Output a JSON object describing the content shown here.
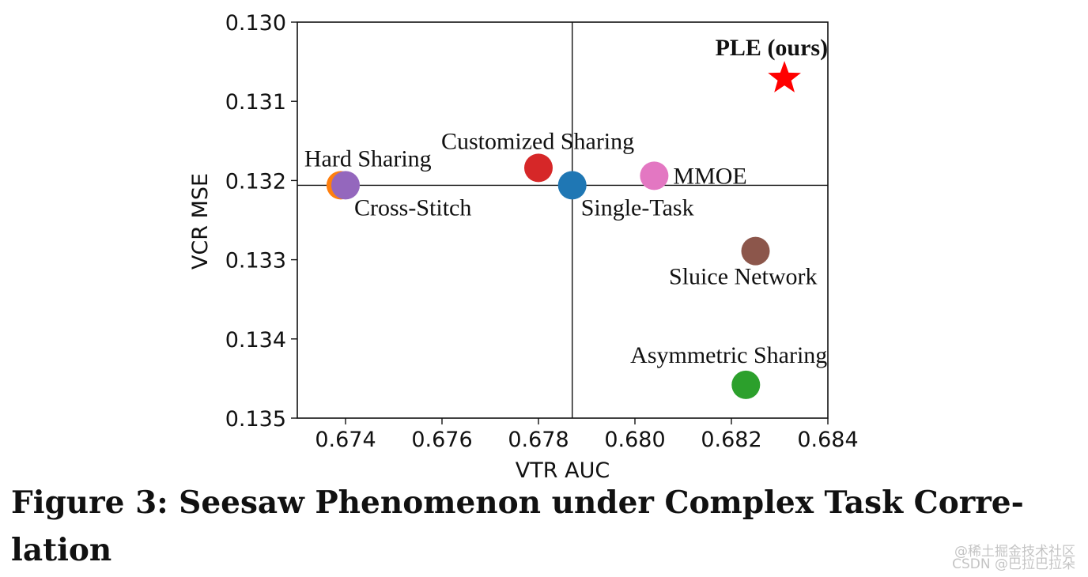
{
  "chart_data": {
    "type": "scatter",
    "xlabel": "VTR AUC",
    "ylabel": "VCR MSE",
    "xlim": [
      0.673,
      0.684
    ],
    "ylim": [
      0.13,
      0.135
    ],
    "y_inverted": true,
    "xticks": [
      "0.674",
      "0.676",
      "0.678",
      "0.680",
      "0.682",
      "0.684"
    ],
    "yticks": [
      "0.130",
      "0.131",
      "0.132",
      "0.133",
      "0.134",
      "0.135"
    ],
    "reference_lines": {
      "x": 0.6787,
      "y": 0.13206
    },
    "points": [
      {
        "label": "Hard Sharing",
        "x": 0.6739,
        "y": 0.13206,
        "color": "#ff7f0e",
        "marker": "circle",
        "label_pos": "above-right",
        "bold": false
      },
      {
        "label": "Cross-Stitch",
        "x": 0.674,
        "y": 0.13206,
        "color": "#9467bd",
        "marker": "circle",
        "label_pos": "below-right",
        "bold": false
      },
      {
        "label": "Customized Sharing",
        "x": 0.678,
        "y": 0.13184,
        "color": "#d62728",
        "marker": "circle",
        "label_pos": "above-right",
        "bold": false
      },
      {
        "label": "Single-Task",
        "x": 0.6787,
        "y": 0.13206,
        "color": "#1f77b4",
        "marker": "circle",
        "label_pos": "below-right",
        "bold": false
      },
      {
        "label": "MMOE",
        "x": 0.6804,
        "y": 0.13194,
        "color": "#e377c2",
        "marker": "circle",
        "label_pos": "right",
        "bold": false
      },
      {
        "label": "Sluice Network",
        "x": 0.6825,
        "y": 0.13289,
        "color": "#8c564b",
        "marker": "circle",
        "label_pos": "below-left",
        "bold": false
      },
      {
        "label": "Asymmetric Sharing",
        "x": 0.6823,
        "y": 0.13458,
        "color": "#2ca02c",
        "marker": "circle",
        "label_pos": "above-left",
        "bold": false
      },
      {
        "label": "PLE (ours)",
        "x": 0.6831,
        "y": 0.13071,
        "color": "#ff0000",
        "marker": "star",
        "label_pos": "above-left",
        "bold": true
      }
    ]
  },
  "caption": {
    "line1": "Figure 3: Seesaw Phenomenon under Complex Task Corre-",
    "line2": "lation"
  },
  "watermark": {
    "line1": "@稀土掘金技术社区",
    "line2": "CSDN @巴拉巴拉朵"
  }
}
